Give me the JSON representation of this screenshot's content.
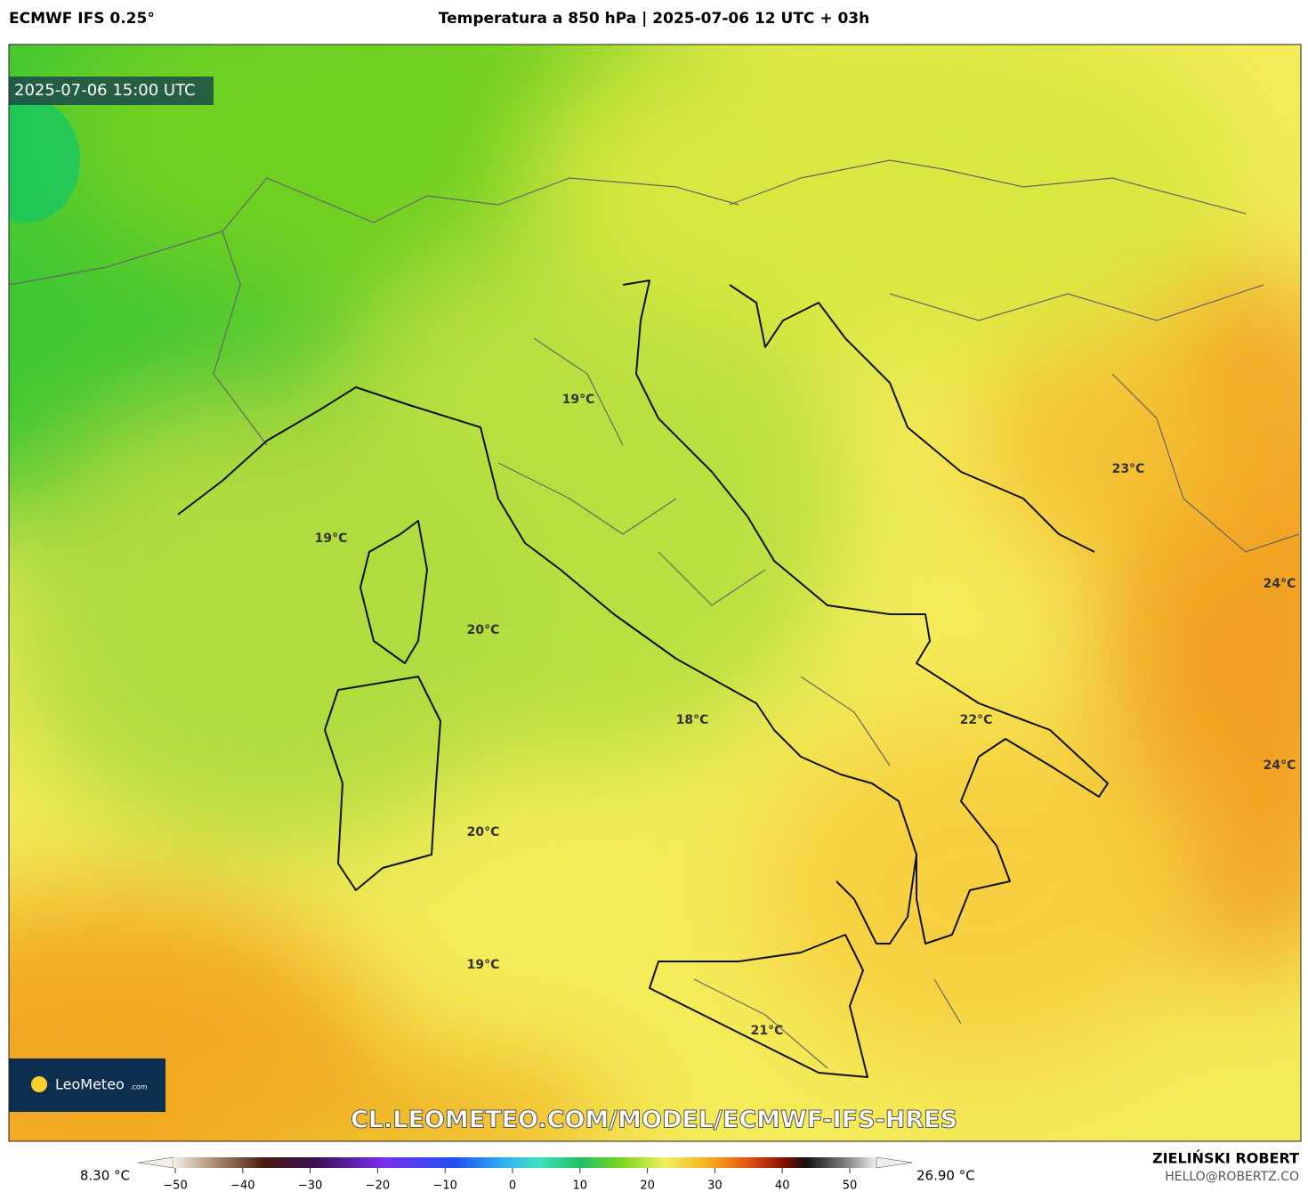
{
  "header": {
    "model": "ECMWF IFS 0.25°",
    "title": "Temperatura a 850 hPa | 2025-07-06 12 UTC + 03h"
  },
  "map": {
    "valid_time": "2025-07-06 15:00 UTC",
    "labels": [
      "19°C",
      "19°C",
      "20°C",
      "18°C",
      "20°C",
      "19°C",
      "21°C",
      "22°C",
      "23°C",
      "24°C",
      "24°C"
    ],
    "watermark": "CL.LEOMETEO.COM/MODEL/ECMWF-IFS-HRES",
    "logo": {
      "name": "LeoMeteo",
      "suffix": ".com"
    }
  },
  "colorbar": {
    "min_label": "8.30 °C",
    "max_label": "26.90 °C",
    "ticks": [
      {
        "value": -50,
        "label": "−50"
      },
      {
        "value": -40,
        "label": "−40"
      },
      {
        "value": -30,
        "label": "−30"
      },
      {
        "value": -20,
        "label": "−20"
      },
      {
        "value": -10,
        "label": "−10"
      },
      0,
      10,
      20,
      30,
      40,
      50
    ]
  },
  "footer": {
    "author": "ZIELIŃSKI ROBERT",
    "email": "HELLO@ROBERTZ.CO"
  }
}
